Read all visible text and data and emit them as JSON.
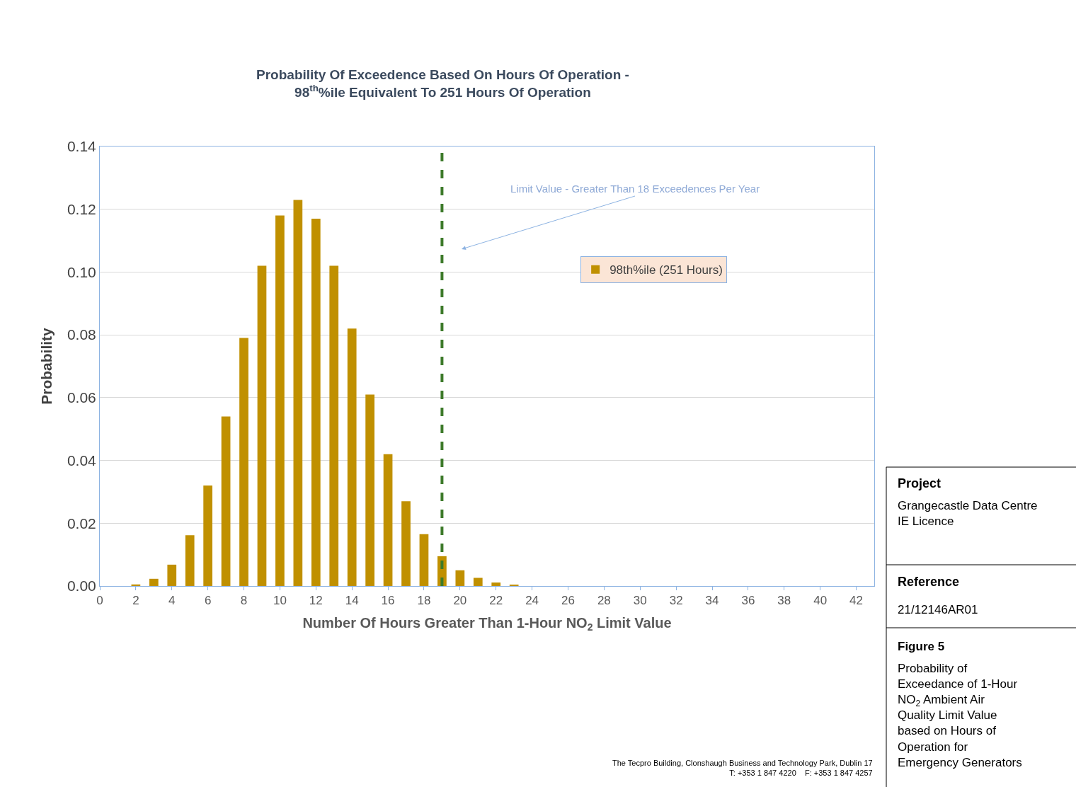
{
  "chart_data": {
    "type": "bar",
    "title": "Probability Of Exceedence Based On Hours Of Operation -\n98$^{th}$%ile Equivalent To 251 Hours Of Operation",
    "xlabel": "Number Of Hours Greater Than 1-Hour NO$_{2}$ Limit Value",
    "ylabel": "Probability",
    "x": [
      2,
      3,
      4,
      5,
      6,
      7,
      8,
      9,
      10,
      11,
      12,
      13,
      14,
      15,
      16,
      17,
      18,
      19,
      20,
      21,
      22,
      23
    ],
    "series": [
      {
        "name": "98th%ile (251 Hours)",
        "color": "#c09000",
        "values": [
          0.0005,
          0.0023,
          0.0068,
          0.0162,
          0.032,
          0.054,
          0.079,
          0.102,
          0.118,
          0.123,
          0.117,
          0.102,
          0.082,
          0.061,
          0.042,
          0.027,
          0.0165,
          0.0095,
          0.005,
          0.0026,
          0.0011,
          0.0004
        ]
      }
    ],
    "xlim": [
      0,
      43
    ],
    "xticks": [
      0,
      2,
      4,
      6,
      8,
      10,
      12,
      14,
      16,
      18,
      20,
      22,
      24,
      26,
      28,
      30,
      32,
      34,
      36,
      38,
      40,
      42
    ],
    "ylim": [
      0,
      0.14
    ],
    "yticks": [
      {
        "value": 0,
        "label": "0.00"
      },
      {
        "value": 0.02,
        "label": "0.02"
      },
      {
        "value": 0.04,
        "label": "0.04"
      },
      {
        "value": 0.06,
        "label": "0.06"
      },
      {
        "value": 0.08,
        "label": "0.08"
      },
      {
        "value": 0.1,
        "label": "0.10"
      },
      {
        "value": 0.12,
        "label": "0.12"
      },
      {
        "value": 0.14,
        "label": "0.14"
      }
    ],
    "grid": "y",
    "legend": "top right",
    "ref_lines": [
      {
        "axis": "x",
        "value": 19,
        "color": "#3d7a2a",
        "line_style": "dashed"
      }
    ],
    "annotations": [
      "Limit Value - Greater Than 18 Exceedences Per Year",
      "Project",
      "Grangecastle Data Centre IE Licence",
      "Reference",
      "21/12146AR01",
      "Figure 5",
      "Probability of Exceedance of 1-Hour NO$_{2}$ Ambient Air Quality Limit Value based on Hours of Operation for Emergency Generators",
      "The Tecpro Building, Clonshaugh Business and Technology Park, Dublin 17\nT: +353 1 847 4220    F: +353 1 847 4257"
    ]
  }
}
